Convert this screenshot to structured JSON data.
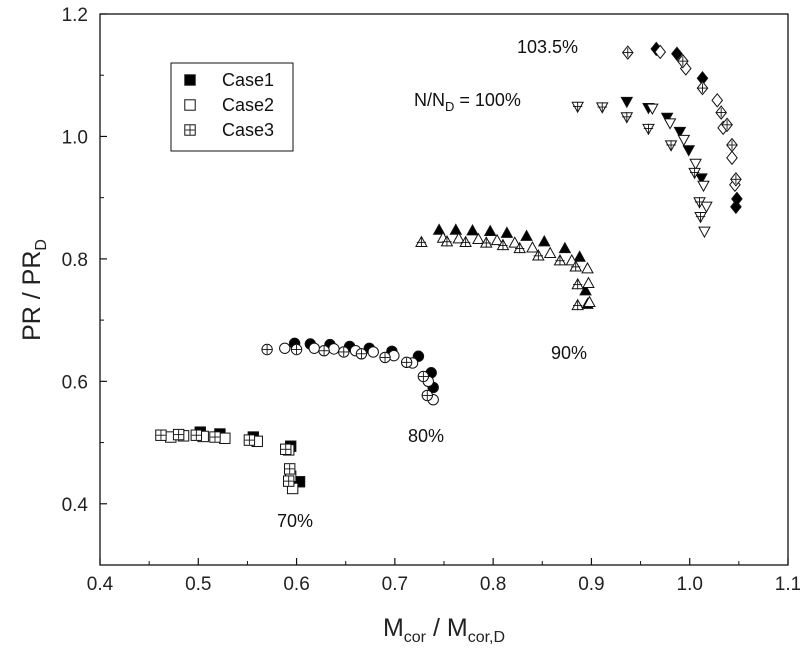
{
  "chart_data": {
    "type": "scatter",
    "xlabel_main": "M",
    "xlabel_sub1": "cor",
    "xlabel_mid": " / M",
    "xlabel_sub2": "cor,D",
    "ylabel_main": "PR / PR",
    "ylabel_sub": "D",
    "xlim": [
      0.4,
      1.1
    ],
    "ylim": [
      0.3,
      1.2
    ],
    "xticks": [
      "0.4",
      "0.5",
      "0.6",
      "0.7",
      "0.8",
      "0.9",
      "1.0",
      "1.1"
    ],
    "yticks": [
      "0.4",
      "0.6",
      "0.8",
      "1.0",
      "1.2"
    ],
    "grid": false,
    "legend_position": "top-left",
    "annotations": {
      "s70": "70%",
      "s80": "80%",
      "s90": "90%",
      "s100_a": "N/N",
      "s100_sub": "D",
      "s100_b": " = 100%",
      "s103": "103.5%"
    },
    "series": [
      {
        "name": "Case1",
        "style": "filled",
        "speedlines": [
          {
            "speed": "70%",
            "marker": "square",
            "points": [
              [
                0.502,
                0.517
              ],
              [
                0.522,
                0.514
              ],
              [
                0.556,
                0.509
              ],
              [
                0.594,
                0.494
              ],
              [
                0.603,
                0.436
              ]
            ]
          },
          {
            "speed": "80%",
            "marker": "circle",
            "points": [
              [
                0.598,
                0.662
              ],
              [
                0.614,
                0.661
              ],
              [
                0.634,
                0.66
              ],
              [
                0.654,
                0.657
              ],
              [
                0.674,
                0.654
              ],
              [
                0.697,
                0.649
              ],
              [
                0.724,
                0.641
              ],
              [
                0.737,
                0.614
              ],
              [
                0.739,
                0.59
              ]
            ]
          },
          {
            "speed": "90%",
            "marker": "triangle-up",
            "points": [
              [
                0.745,
                0.847
              ],
              [
                0.762,
                0.847
              ],
              [
                0.779,
                0.846
              ],
              [
                0.797,
                0.845
              ],
              [
                0.814,
                0.842
              ],
              [
                0.834,
                0.837
              ],
              [
                0.852,
                0.828
              ],
              [
                0.873,
                0.817
              ],
              [
                0.888,
                0.803
              ],
              [
                0.894,
                0.748
              ],
              [
                0.896,
                0.726
              ]
            ]
          },
          {
            "speed": "100%",
            "marker": "triangle-down",
            "points": [
              [
                0.936,
                1.057
              ],
              [
                0.958,
                1.047
              ],
              [
                0.977,
                1.031
              ],
              [
                0.99,
                1.008
              ],
              [
                0.999,
                0.978
              ],
              [
                1.012,
                0.932
              ]
            ]
          },
          {
            "speed": "103.5%",
            "marker": "diamond",
            "points": [
              [
                0.966,
                1.143
              ],
              [
                0.987,
                1.135
              ],
              [
                1.013,
                1.095
              ],
              [
                1.048,
                0.898
              ],
              [
                1.047,
                0.885
              ]
            ]
          }
        ]
      },
      {
        "name": "Case2",
        "style": "open",
        "speedlines": [
          {
            "speed": "70%",
            "marker": "square",
            "points": [
              [
                0.472,
                0.509
              ],
              [
                0.485,
                0.511
              ],
              [
                0.505,
                0.51
              ],
              [
                0.527,
                0.507
              ],
              [
                0.56,
                0.502
              ],
              [
                0.592,
                0.488
              ],
              [
                0.594,
                0.445
              ],
              [
                0.596,
                0.425
              ]
            ]
          },
          {
            "speed": "80%",
            "marker": "circle",
            "points": [
              [
                0.588,
                0.654
              ],
              [
                0.618,
                0.654
              ],
              [
                0.638,
                0.653
              ],
              [
                0.66,
                0.65
              ],
              [
                0.678,
                0.648
              ],
              [
                0.699,
                0.642
              ],
              [
                0.718,
                0.63
              ],
              [
                0.734,
                0.6
              ],
              [
                0.739,
                0.57
              ]
            ]
          },
          {
            "speed": "90%",
            "marker": "triangle-up",
            "points": [
              [
                0.749,
                0.834
              ],
              [
                0.765,
                0.833
              ],
              [
                0.785,
                0.832
              ],
              [
                0.804,
                0.83
              ],
              [
                0.822,
                0.826
              ],
              [
                0.84,
                0.818
              ],
              [
                0.858,
                0.809
              ],
              [
                0.88,
                0.797
              ],
              [
                0.896,
                0.784
              ],
              [
                0.897,
                0.76
              ],
              [
                0.898,
                0.729
              ]
            ]
          },
          {
            "speed": "100%",
            "marker": "triangle-down",
            "points": [
              [
                0.962,
                1.046
              ],
              [
                0.98,
                1.022
              ],
              [
                0.994,
                0.995
              ],
              [
                1.006,
                0.956
              ],
              [
                1.014,
                0.92
              ],
              [
                1.017,
                0.886
              ],
              [
                1.015,
                0.845
              ]
            ]
          },
          {
            "speed": "103.5%",
            "marker": "diamond",
            "points": [
              [
                0.97,
                1.138
              ],
              [
                0.996,
                1.111
              ],
              [
                1.028,
                1.059
              ],
              [
                1.034,
                1.014
              ],
              [
                1.043,
                0.965
              ],
              [
                1.046,
                0.921
              ]
            ]
          }
        ]
      },
      {
        "name": "Case3",
        "style": "crosshatch",
        "speedlines": [
          {
            "speed": "70%",
            "marker": "square",
            "points": [
              [
                0.462,
                0.512
              ],
              [
                0.48,
                0.513
              ],
              [
                0.498,
                0.512
              ],
              [
                0.517,
                0.509
              ],
              [
                0.552,
                0.504
              ],
              [
                0.589,
                0.489
              ],
              [
                0.593,
                0.457
              ],
              [
                0.592,
                0.437
              ]
            ]
          },
          {
            "speed": "80%",
            "marker": "circle",
            "points": [
              [
                0.57,
                0.652
              ],
              [
                0.6,
                0.652
              ],
              [
                0.628,
                0.65
              ],
              [
                0.648,
                0.648
              ],
              [
                0.666,
                0.645
              ],
              [
                0.69,
                0.639
              ],
              [
                0.712,
                0.631
              ],
              [
                0.729,
                0.608
              ],
              [
                0.733,
                0.577
              ]
            ]
          },
          {
            "speed": "90%",
            "marker": "triangle-up",
            "points": [
              [
                0.727,
                0.827
              ],
              [
                0.753,
                0.828
              ],
              [
                0.772,
                0.827
              ],
              [
                0.793,
                0.826
              ],
              [
                0.81,
                0.822
              ],
              [
                0.827,
                0.817
              ],
              [
                0.846,
                0.805
              ],
              [
                0.868,
                0.797
              ],
              [
                0.884,
                0.787
              ],
              [
                0.886,
                0.758
              ],
              [
                0.886,
                0.724
              ]
            ]
          },
          {
            "speed": "100%",
            "marker": "triangle-down",
            "points": [
              [
                0.886,
                1.049
              ],
              [
                0.911,
                1.048
              ],
              [
                0.936,
                1.032
              ],
              [
                0.958,
                1.013
              ],
              [
                0.981,
                0.986
              ],
              [
                1.005,
                0.941
              ],
              [
                1.01,
                0.893
              ],
              [
                1.011,
                0.869
              ]
            ]
          },
          {
            "speed": "103.5%",
            "marker": "diamond",
            "points": [
              [
                0.937,
                1.137
              ],
              [
                0.993,
                1.123
              ],
              [
                1.013,
                1.079
              ],
              [
                1.032,
                1.039
              ],
              [
                1.038,
                1.019
              ],
              [
                1.043,
                0.986
              ],
              [
                1.047,
                0.93
              ]
            ]
          }
        ]
      }
    ]
  }
}
